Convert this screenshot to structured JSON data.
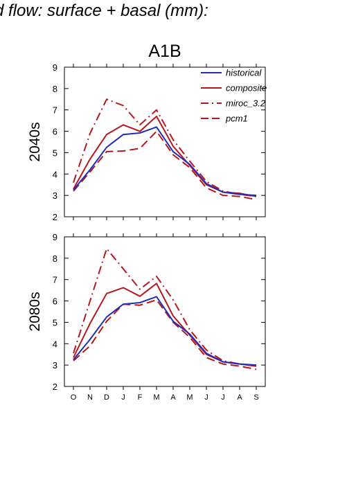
{
  "figure_title": "d flow: surface + basal (mm):",
  "panel_title": "A1B",
  "colors": {
    "historical": "#1f2db8",
    "scenario": "#b5161c",
    "axis": "#000000"
  },
  "chart_data": [
    {
      "type": "line",
      "row_label": "2040s",
      "categories": [
        "O",
        "N",
        "D",
        "J",
        "F",
        "M",
        "A",
        "M",
        "J",
        "J",
        "A",
        "S"
      ],
      "ylim": [
        2,
        9
      ],
      "yticks": [
        2,
        3,
        4,
        5,
        6,
        7,
        8,
        9
      ],
      "legend_position": "top-right",
      "series": [
        {
          "name": "historical",
          "style": "solid",
          "color": "#1f2db8",
          "values": [
            3.25,
            4.2,
            5.25,
            5.85,
            5.92,
            6.2,
            5.05,
            4.45,
            3.55,
            3.15,
            3.05,
            3.0
          ]
        },
        {
          "name": "composite",
          "style": "solid",
          "color": "#b5161c",
          "values": [
            3.3,
            4.7,
            5.85,
            6.3,
            6.0,
            6.7,
            5.3,
            4.4,
            3.5,
            3.15,
            3.1,
            2.95
          ]
        },
        {
          "name": "miroc_3.2",
          "style": "dashdot",
          "color": "#b5161c",
          "values": [
            3.6,
            5.9,
            7.5,
            7.2,
            6.3,
            7.0,
            5.6,
            4.6,
            3.65,
            3.2,
            3.05,
            2.95
          ]
        },
        {
          "name": "pcm1",
          "style": "dashed",
          "color": "#b5161c",
          "values": [
            3.2,
            4.1,
            5.05,
            5.08,
            5.2,
            6.0,
            4.9,
            4.3,
            3.35,
            3.0,
            2.95,
            2.8
          ]
        }
      ]
    },
    {
      "type": "line",
      "row_label": "2080s",
      "categories": [
        "O",
        "N",
        "D",
        "J",
        "F",
        "M",
        "A",
        "M",
        "J",
        "J",
        "A",
        "S"
      ],
      "ylim": [
        2,
        9
      ],
      "yticks": [
        2,
        3,
        4,
        5,
        6,
        7,
        8,
        9
      ],
      "series": [
        {
          "name": "historical",
          "style": "solid",
          "color": "#1f2db8",
          "values": [
            3.25,
            4.2,
            5.25,
            5.85,
            5.92,
            6.2,
            5.05,
            4.45,
            3.55,
            3.15,
            3.05,
            3.0
          ]
        },
        {
          "name": "composite",
          "style": "solid",
          "color": "#b5161c",
          "values": [
            3.35,
            4.95,
            6.35,
            6.62,
            6.22,
            6.82,
            5.3,
            4.4,
            3.5,
            3.15,
            3.05,
            2.95
          ]
        },
        {
          "name": "miroc_3.2",
          "style": "dashdot",
          "color": "#b5161c",
          "values": [
            3.55,
            6.0,
            8.45,
            7.5,
            6.55,
            7.15,
            6.05,
            4.65,
            3.7,
            3.2,
            3.05,
            2.95
          ]
        },
        {
          "name": "pcm1",
          "style": "dashed",
          "color": "#b5161c",
          "values": [
            3.2,
            3.9,
            5.05,
            5.85,
            5.8,
            6.05,
            5.0,
            4.3,
            3.35,
            3.05,
            2.95,
            2.8
          ]
        }
      ]
    }
  ]
}
